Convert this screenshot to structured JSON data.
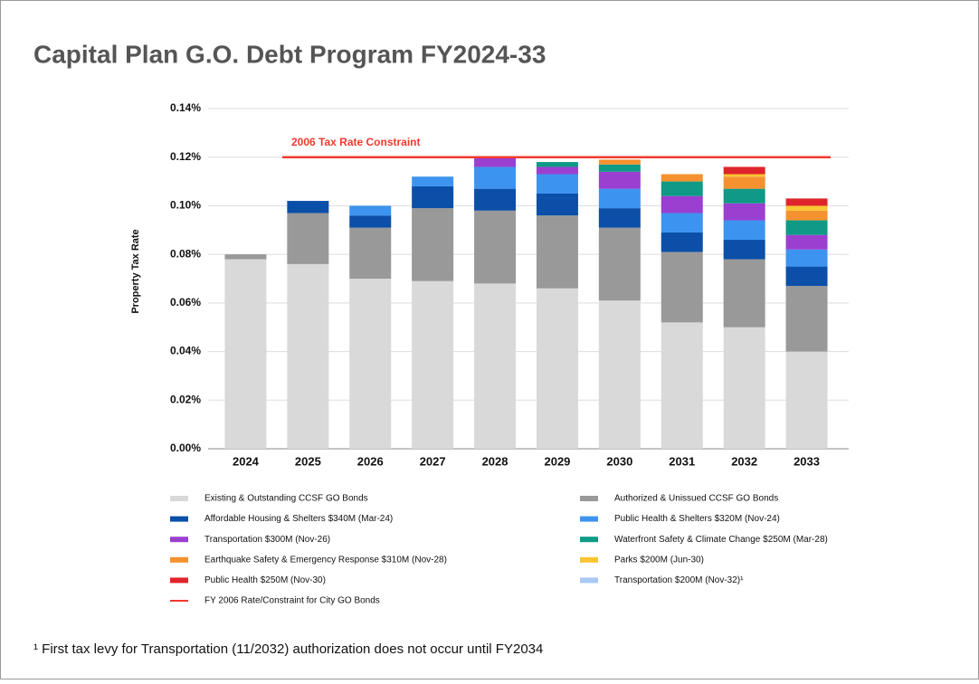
{
  "chart_data": {
    "type": "stacked_bar",
    "title": "Capital Plan G.O. Debt Program FY2024-33",
    "y_label": "Property Tax Rate",
    "categories": [
      "2024",
      "2025",
      "2026",
      "2027",
      "2028",
      "2029",
      "2030",
      "2031",
      "2032",
      "2033"
    ],
    "series": [
      {
        "name": "Existing & Outstanding CCSF GO Bonds",
        "color": "#d9d9d9",
        "values": [
          0.078,
          0.076,
          0.07,
          0.069,
          0.068,
          0.066,
          0.061,
          0.052,
          0.05,
          0.04
        ]
      },
      {
        "name": "Authorized & Unissued CCSF GO Bonds",
        "color": "#999999",
        "values": [
          0.002,
          0.021,
          0.021,
          0.03,
          0.03,
          0.03,
          0.03,
          0.029,
          0.028,
          0.027
        ]
      },
      {
        "name": "Affordable Housing & Shelters $340M (Mar-24)",
        "color": "#0b4fa8",
        "values": [
          0,
          0.005,
          0.005,
          0.009,
          0.009,
          0.009,
          0.008,
          0.008,
          0.008,
          0.008
        ]
      },
      {
        "name": "Public Health & Shelters $320M (Nov-24)",
        "color": "#3d94f0",
        "values": [
          0,
          0,
          0.004,
          0.004,
          0.009,
          0.008,
          0.008,
          0.008,
          0.008,
          0.007
        ]
      },
      {
        "name": "Transportation $300M (Nov-26)",
        "color": "#9b3fd1",
        "values": [
          0,
          0,
          0,
          0,
          0.004,
          0.003,
          0.007,
          0.007,
          0.007,
          0.006
        ]
      },
      {
        "name": "Waterfront Safety & Climate Change $250M (Mar-28)",
        "color": "#0f9a86",
        "values": [
          0,
          0,
          0,
          0,
          0,
          0.002,
          0.003,
          0.006,
          0.006,
          0.006
        ]
      },
      {
        "name": "Earthquake Safety & Emergency Response $310M (Nov-28)",
        "color": "#f5922f",
        "values": [
          0,
          0,
          0,
          0,
          0,
          0,
          0.002,
          0.003,
          0.005,
          0.004
        ]
      },
      {
        "name": "Parks $200M (Jun-30)",
        "color": "#fbc531",
        "values": [
          0,
          0,
          0,
          0,
          0,
          0,
          0,
          0,
          0.001,
          0.002
        ]
      },
      {
        "name": "Public Health $250M (Nov-30)",
        "color": "#e0242b",
        "values": [
          0,
          0,
          0,
          0,
          0,
          0,
          0,
          0,
          0.003,
          0.003
        ]
      },
      {
        "name": "Transportation $200M (Nov-32)¹",
        "color": "#a9c8f5",
        "values": [
          0,
          0,
          0,
          0,
          0,
          0,
          0,
          0,
          0,
          0
        ]
      }
    ],
    "reference_line": {
      "value": 0.12,
      "label": "2006 Tax Rate Constraint",
      "name": "FY 2006 Rate/Constraint for City GO Bonds",
      "color": "#f03a2e"
    },
    "ylim": [
      0,
      0.14
    ],
    "yticks": [
      {
        "value": 0,
        "label": "0.00%"
      },
      {
        "value": 0.02,
        "label": "0.02%"
      },
      {
        "value": 0.04,
        "label": "0.04%"
      },
      {
        "value": 0.06,
        "label": "0.06%"
      },
      {
        "value": 0.08,
        "label": "0.08%"
      },
      {
        "value": 0.1,
        "label": "0.10%"
      },
      {
        "value": 0.12,
        "label": "0.12%"
      },
      {
        "value": 0.14,
        "label": "0.14%"
      }
    ],
    "grid": true,
    "footnote": "¹ First tax levy for Transportation (11/2032) authorization does not occur until FY2034"
  }
}
